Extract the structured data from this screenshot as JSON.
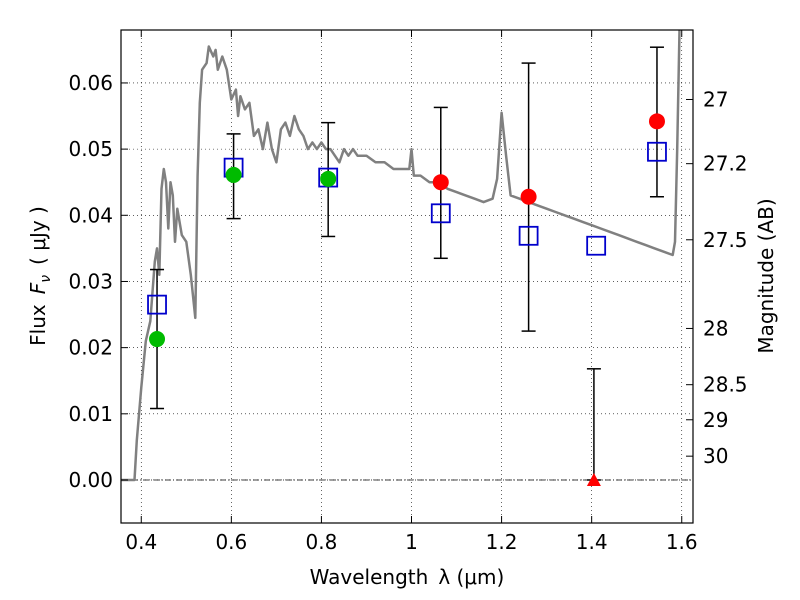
{
  "chart_data": {
    "type": "scatter",
    "xlabel": "Wavelength",
    "xlabel_symbol": "λ (μm)",
    "ylabel": "Flux",
    "ylabel_symbol": "F",
    "ylabel_subscript": "ν",
    "ylabel_unit": "( μJy )",
    "y2label": "Magnitude (AB)",
    "xlim": [
      0.355,
      1.625
    ],
    "ylim": [
      -0.0065,
      0.068
    ],
    "grid": true,
    "x_ticks": [
      0.4,
      0.6,
      0.8,
      1.0,
      1.2,
      1.4,
      1.6
    ],
    "x_tick_labels": [
      "0.4",
      "0.6",
      "0.8",
      "1",
      "1.2",
      "1.4",
      "1.6"
    ],
    "y_ticks": [
      0.0,
      0.01,
      0.02,
      0.03,
      0.04,
      0.05,
      0.06
    ],
    "y_tick_labels": [
      "0.00",
      "0.01",
      "0.02",
      "0.03",
      "0.04",
      "0.05",
      "0.06"
    ],
    "y2_ticks": [
      {
        "label": "27",
        "flux": 0.0575
      },
      {
        "label": "27.2",
        "flux": 0.0478
      },
      {
        "label": "27.5",
        "flux": 0.0363
      },
      {
        "label": "28",
        "flux": 0.0229
      },
      {
        "label": "28.5",
        "flux": 0.0144
      },
      {
        "label": "29",
        "flux": 0.0091
      },
      {
        "label": "30",
        "flux": 0.0036
      }
    ],
    "zero_line": 0.0,
    "colors": {
      "model": "#808080",
      "green": "#00bb00",
      "red": "#ff0000",
      "square": "#0000cc",
      "errorbar": "#000000"
    },
    "series": [
      {
        "kind": "model_spectrum",
        "points": [
          [
            0.355,
            0.0
          ],
          [
            0.385,
            0.0
          ],
          [
            0.39,
            0.006
          ],
          [
            0.4,
            0.014
          ],
          [
            0.41,
            0.021
          ],
          [
            0.42,
            0.024
          ],
          [
            0.43,
            0.033
          ],
          [
            0.435,
            0.035
          ],
          [
            0.44,
            0.031
          ],
          [
            0.445,
            0.044
          ],
          [
            0.45,
            0.047
          ],
          [
            0.455,
            0.045
          ],
          [
            0.46,
            0.038
          ],
          [
            0.465,
            0.045
          ],
          [
            0.47,
            0.043
          ],
          [
            0.475,
            0.036
          ],
          [
            0.48,
            0.041
          ],
          [
            0.49,
            0.037
          ],
          [
            0.5,
            0.036
          ],
          [
            0.51,
            0.031
          ],
          [
            0.52,
            0.0245
          ],
          [
            0.525,
            0.046
          ],
          [
            0.53,
            0.057
          ],
          [
            0.535,
            0.062
          ],
          [
            0.545,
            0.063
          ],
          [
            0.55,
            0.0655
          ],
          [
            0.56,
            0.064
          ],
          [
            0.565,
            0.065
          ],
          [
            0.57,
            0.062
          ],
          [
            0.58,
            0.064
          ],
          [
            0.59,
            0.062
          ],
          [
            0.6,
            0.0575
          ],
          [
            0.61,
            0.059
          ],
          [
            0.615,
            0.055
          ],
          [
            0.62,
            0.058
          ],
          [
            0.63,
            0.056
          ],
          [
            0.64,
            0.057
          ],
          [
            0.65,
            0.052
          ],
          [
            0.66,
            0.053
          ],
          [
            0.67,
            0.05
          ],
          [
            0.68,
            0.054
          ],
          [
            0.69,
            0.05
          ],
          [
            0.7,
            0.048
          ],
          [
            0.71,
            0.053
          ],
          [
            0.72,
            0.054
          ],
          [
            0.73,
            0.052
          ],
          [
            0.74,
            0.055
          ],
          [
            0.75,
            0.053
          ],
          [
            0.76,
            0.052
          ],
          [
            0.77,
            0.05
          ],
          [
            0.78,
            0.051
          ],
          [
            0.79,
            0.05
          ],
          [
            0.8,
            0.051
          ],
          [
            0.81,
            0.05
          ],
          [
            0.82,
            0.05
          ],
          [
            0.83,
            0.049
          ],
          [
            0.84,
            0.048
          ],
          [
            0.85,
            0.05
          ],
          [
            0.86,
            0.049
          ],
          [
            0.87,
            0.05
          ],
          [
            0.88,
            0.049
          ],
          [
            0.9,
            0.049
          ],
          [
            0.92,
            0.048
          ],
          [
            0.94,
            0.048
          ],
          [
            0.96,
            0.047
          ],
          [
            0.98,
            0.047
          ],
          [
            0.995,
            0.047
          ],
          [
            1.0,
            0.05
          ],
          [
            1.005,
            0.046
          ],
          [
            1.02,
            0.046
          ],
          [
            1.04,
            0.045
          ],
          [
            1.06,
            0.045
          ],
          [
            1.08,
            0.044
          ],
          [
            1.1,
            0.0435
          ],
          [
            1.12,
            0.043
          ],
          [
            1.14,
            0.0425
          ],
          [
            1.16,
            0.042
          ],
          [
            1.18,
            0.0425
          ],
          [
            1.19,
            0.0455
          ],
          [
            1.2,
            0.0555
          ],
          [
            1.21,
            0.049
          ],
          [
            1.22,
            0.043
          ],
          [
            1.24,
            0.0425
          ],
          [
            1.26,
            0.042
          ],
          [
            1.28,
            0.0415
          ],
          [
            1.3,
            0.041
          ],
          [
            1.32,
            0.0405
          ],
          [
            1.34,
            0.04
          ],
          [
            1.36,
            0.0395
          ],
          [
            1.38,
            0.039
          ],
          [
            1.4,
            0.0385
          ],
          [
            1.42,
            0.038
          ],
          [
            1.44,
            0.0375
          ],
          [
            1.46,
            0.037
          ],
          [
            1.48,
            0.0365
          ],
          [
            1.5,
            0.036
          ],
          [
            1.52,
            0.0355
          ],
          [
            1.54,
            0.035
          ],
          [
            1.56,
            0.0345
          ],
          [
            1.58,
            0.034
          ],
          [
            1.585,
            0.036
          ],
          [
            1.59,
            0.05
          ],
          [
            1.595,
            0.068
          ]
        ]
      },
      {
        "kind": "observed_green",
        "points": [
          {
            "x": 0.435,
            "y": 0.0213,
            "yerr_low": 0.0108,
            "yerr_high": 0.0318
          },
          {
            "x": 0.605,
            "y": 0.0461,
            "yerr_low": 0.0395,
            "yerr_high": 0.0523
          },
          {
            "x": 0.815,
            "y": 0.0455,
            "yerr_low": 0.0368,
            "yerr_high": 0.054
          }
        ]
      },
      {
        "kind": "observed_red",
        "points": [
          {
            "x": 1.065,
            "y": 0.045,
            "yerr_low": 0.0335,
            "yerr_high": 0.0563
          },
          {
            "x": 1.26,
            "y": 0.0428,
            "yerr_low": 0.0225,
            "yerr_high": 0.063
          },
          {
            "x": 1.545,
            "y": 0.0542,
            "yerr_low": 0.0428,
            "yerr_high": 0.0654
          }
        ]
      },
      {
        "kind": "upper_limit_triangle",
        "points": [
          {
            "x": 1.405,
            "y": 0.0,
            "yerr_high": 0.0168
          }
        ]
      },
      {
        "kind": "model_squares",
        "points": [
          {
            "x": 0.435,
            "y": 0.0265
          },
          {
            "x": 0.605,
            "y": 0.0472
          },
          {
            "x": 0.815,
            "y": 0.0457
          },
          {
            "x": 1.065,
            "y": 0.0403
          },
          {
            "x": 1.26,
            "y": 0.0369
          },
          {
            "x": 1.41,
            "y": 0.0354
          },
          {
            "x": 1.545,
            "y": 0.0496
          }
        ]
      }
    ]
  }
}
